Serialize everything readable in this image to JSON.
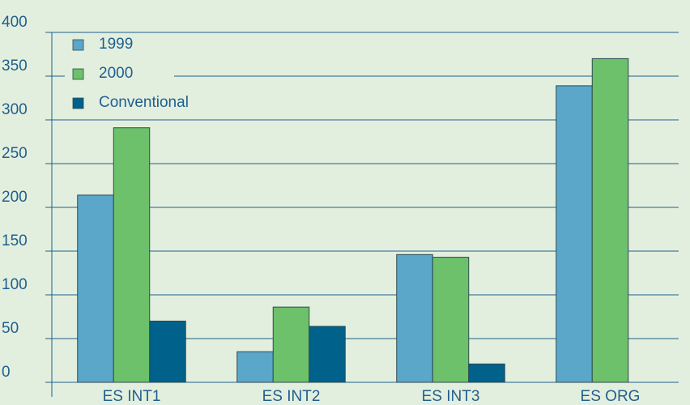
{
  "chart_data": {
    "type": "bar",
    "categories": [
      "ES INT1",
      "ES INT2",
      "ES INT3",
      "ES ORG"
    ],
    "series": [
      {
        "name": "1999",
        "color": "#5ba7c9",
        "values": [
          214,
          35,
          146,
          339
        ]
      },
      {
        "name": "2000",
        "color": "#6cc16a",
        "values": [
          291,
          86,
          143,
          370
        ]
      },
      {
        "name": "Conventional",
        "color": "#00618b",
        "values": [
          70,
          64,
          21,
          null
        ]
      }
    ],
    "ylim": [
      0,
      400
    ],
    "yticks": [
      0,
      50,
      100,
      150,
      200,
      250,
      300,
      350,
      400
    ],
    "grid": true,
    "legend": "upper left"
  }
}
